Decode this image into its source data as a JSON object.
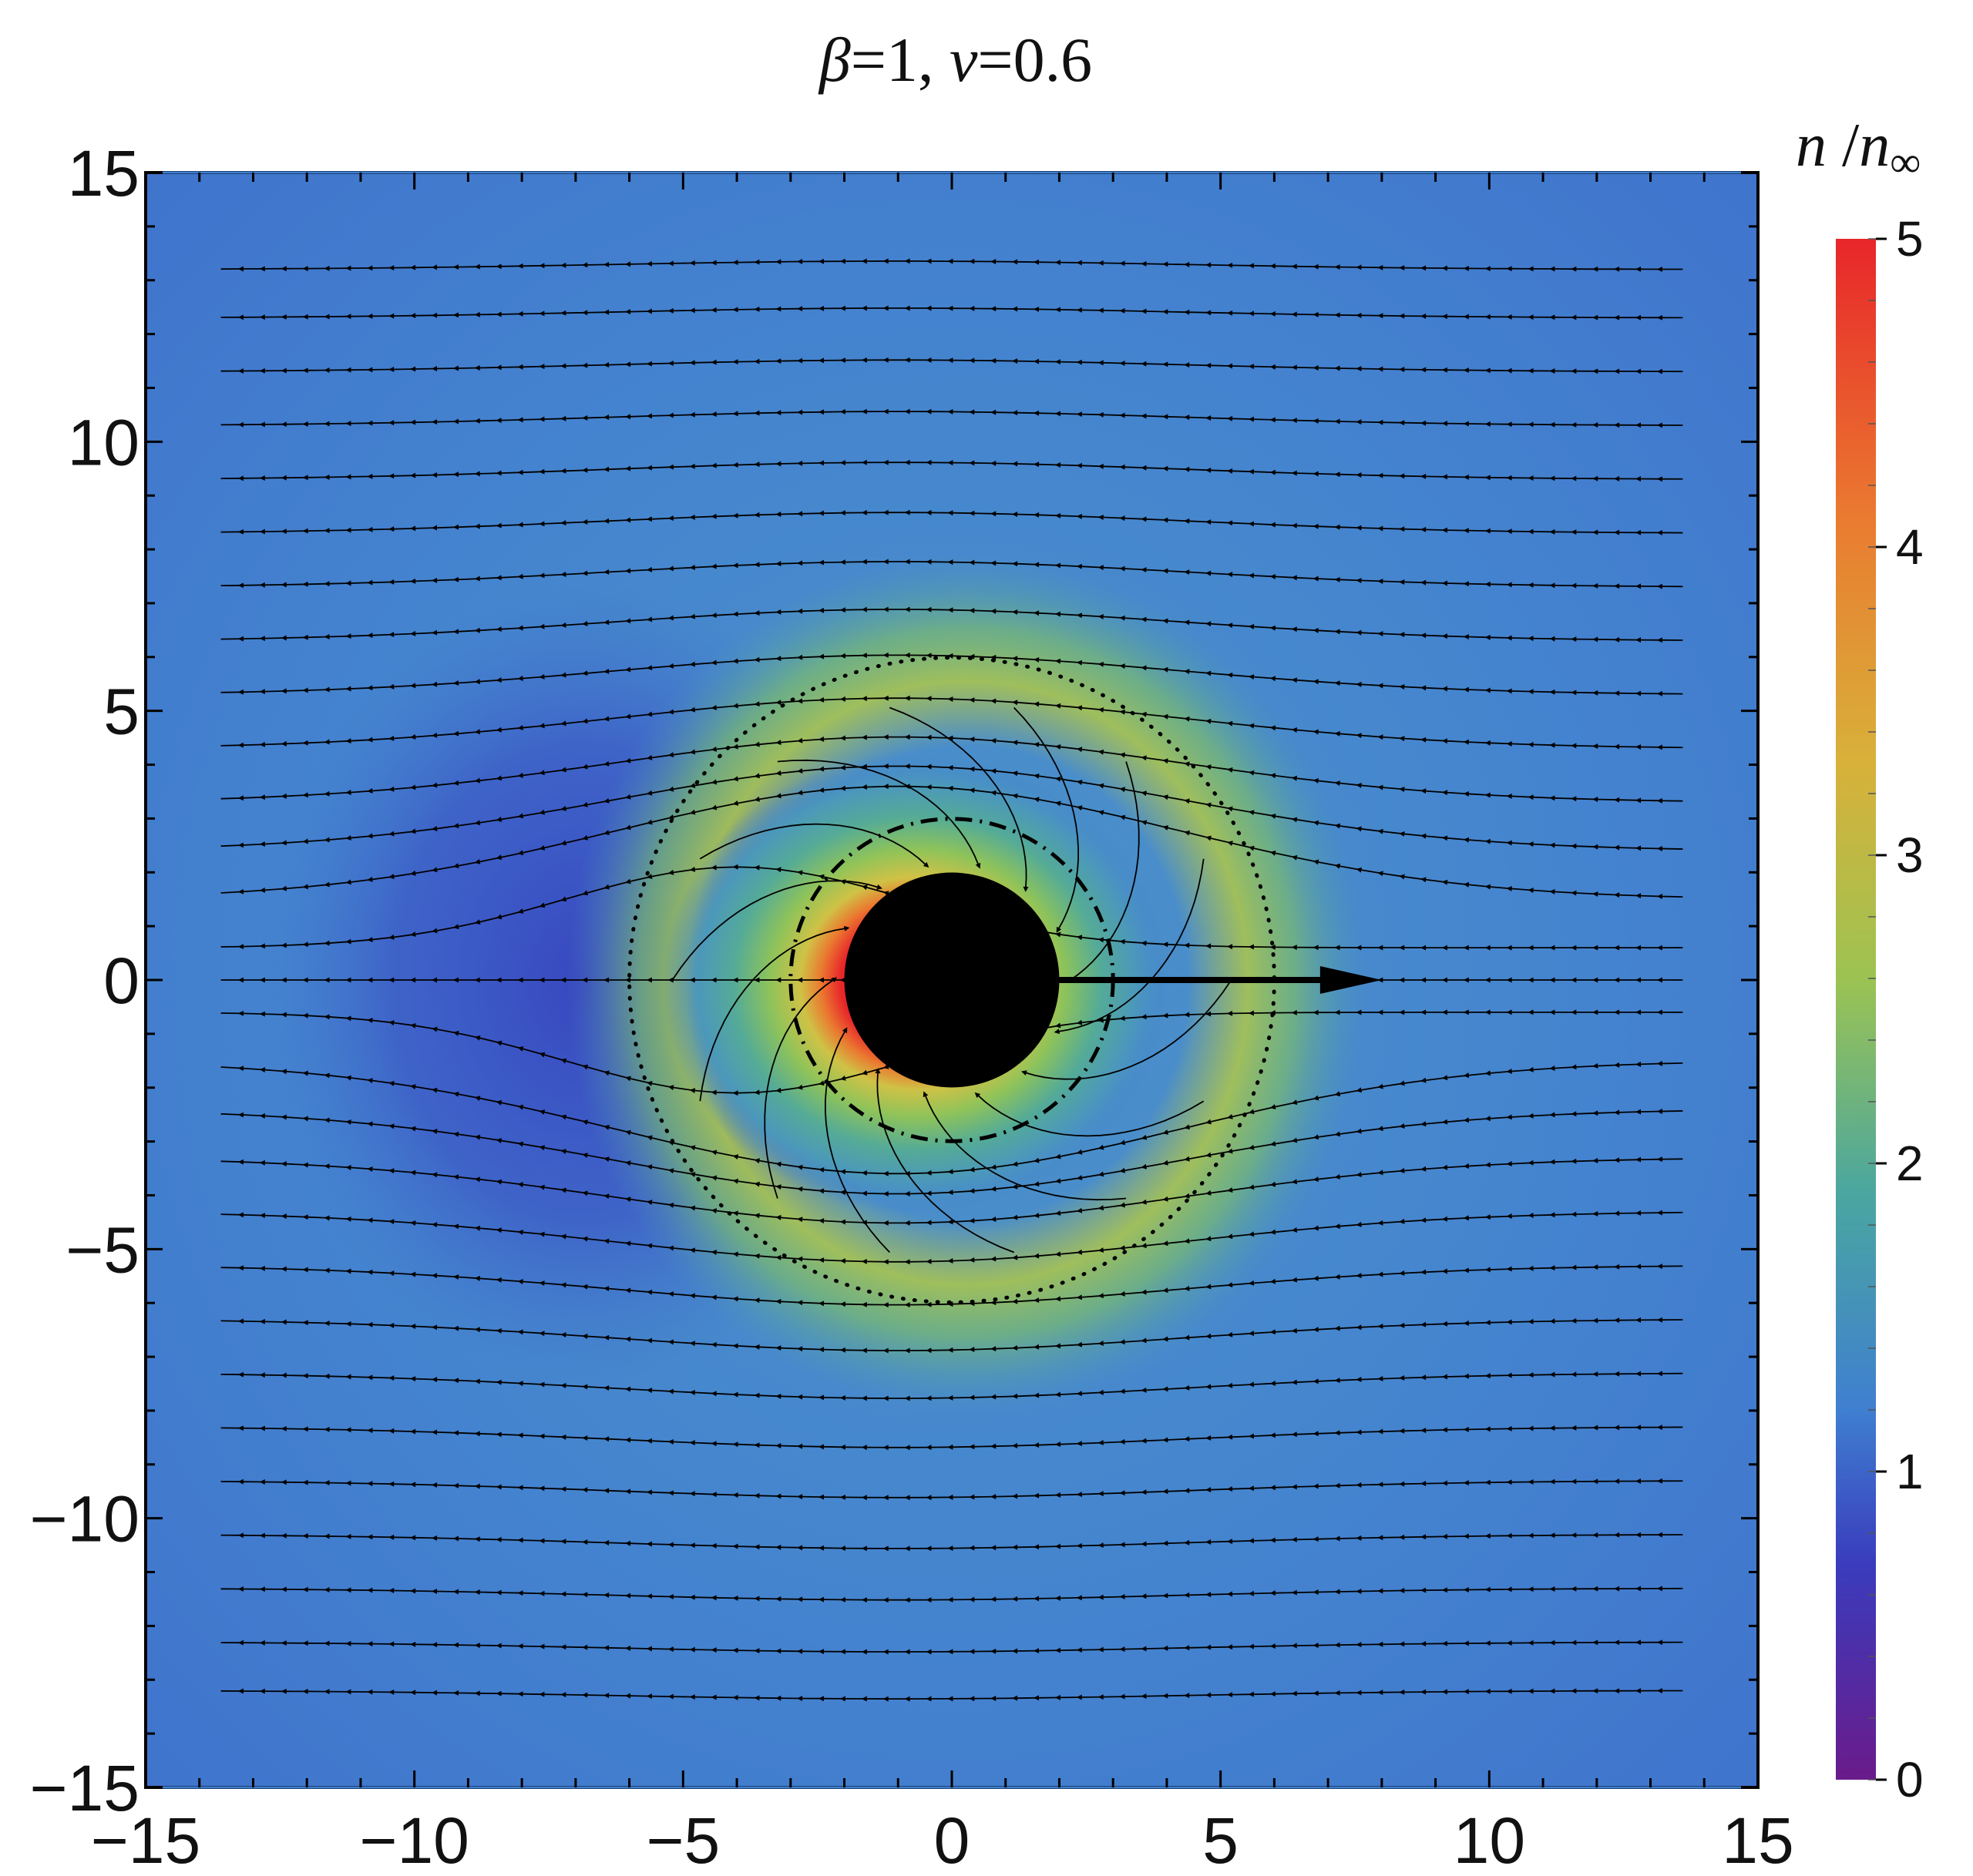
{
  "chart_data": {
    "type": "heatmap",
    "title_parts": {
      "beta_symbol": "β",
      "beta_value": "=1, ",
      "v_symbol": "v",
      "v_value": "=0.6"
    },
    "xlabel": "",
    "ylabel": "",
    "xlim": [
      -15,
      15
    ],
    "ylim": [
      -15,
      15
    ],
    "x_ticks": [
      {
        "value": -15,
        "label": "−15"
      },
      {
        "value": -10,
        "label": "−10"
      },
      {
        "value": -5,
        "label": "−5"
      },
      {
        "value": 0,
        "label": "0"
      },
      {
        "value": 5,
        "label": "5"
      },
      {
        "value": 10,
        "label": "10"
      },
      {
        "value": 15,
        "label": "15"
      }
    ],
    "y_ticks": [
      {
        "value": 15,
        "label": "15"
      },
      {
        "value": 10,
        "label": "10"
      },
      {
        "value": 5,
        "label": "5"
      },
      {
        "value": 0,
        "label": "0"
      },
      {
        "value": -5,
        "label": "−5"
      },
      {
        "value": -10,
        "label": "−10"
      },
      {
        "value": -15,
        "label": "−15"
      }
    ],
    "colorbar": {
      "title_parts": {
        "n": "n",
        "slash": " /",
        "n_inf": "n",
        "inf_sub": "∞"
      },
      "range": [
        0,
        5
      ],
      "ticks": [
        {
          "value": 5,
          "label": "5"
        },
        {
          "value": 4,
          "label": "4"
        },
        {
          "value": 3,
          "label": "3"
        },
        {
          "value": 2,
          "label": "2"
        },
        {
          "value": 1,
          "label": "1"
        },
        {
          "value": 0,
          "label": "0"
        }
      ],
      "colors": [
        "#6a1b8a",
        "#3a3cbd",
        "#3f7fd0",
        "#4aa6a0",
        "#9cc352",
        "#d8b13a",
        "#ea7a30",
        "#e8262a"
      ]
    },
    "background_density": 1.3,
    "black_hole": {
      "center": [
        0,
        0
      ],
      "radius": 2
    },
    "dashdot_circle": {
      "center": [
        0,
        0
      ],
      "radius": 3
    },
    "dotted_circle": {
      "center": [
        0,
        0
      ],
      "radius": 6
    },
    "velocity_arrow": {
      "from": [
        2,
        0
      ],
      "to": [
        8,
        0
      ]
    },
    "flow_y_offsets_right": [
      13.2,
      12.3,
      11.3,
      10.3,
      9.3,
      8.3,
      7.3,
      6.3,
      5.3,
      4.3,
      3.3,
      2.4,
      1.5,
      0.6,
      0.0,
      -0.6,
      -1.5,
      -2.4,
      -3.3,
      -4.3,
      -5.3,
      -6.3,
      -7.3,
      -8.3,
      -9.3,
      -10.3,
      -11.3,
      -12.3,
      -13.2
    ]
  }
}
